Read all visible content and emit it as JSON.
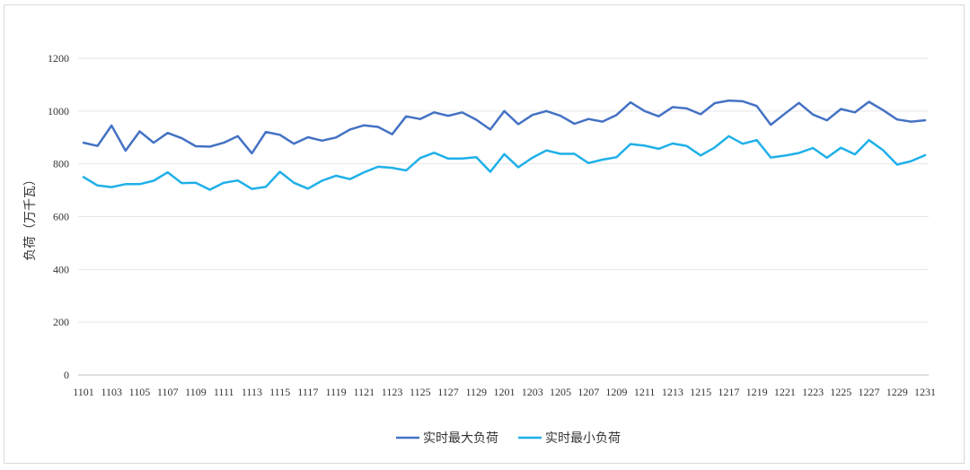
{
  "chart_data": {
    "type": "line",
    "ylabel": "负荷（万千瓦）",
    "ylim": [
      0,
      1200
    ],
    "yticks": [
      0,
      200,
      400,
      600,
      800,
      1000,
      1200
    ],
    "grid": "horizontal",
    "legend_position": "bottom",
    "x": [
      "1101",
      "1102",
      "1103",
      "1104",
      "1105",
      "1106",
      "1107",
      "1108",
      "1109",
      "1110",
      "1111",
      "1112",
      "1113",
      "1114",
      "1115",
      "1116",
      "1117",
      "1118",
      "1119",
      "1120",
      "1121",
      "1122",
      "1123",
      "1124",
      "1125",
      "1126",
      "1127",
      "1128",
      "1129",
      "1130",
      "1201",
      "1202",
      "1203",
      "1204",
      "1205",
      "1206",
      "1207",
      "1208",
      "1209",
      "1210",
      "1211",
      "1212",
      "1213",
      "1214",
      "1215",
      "1216",
      "1217",
      "1218",
      "1219",
      "1220",
      "1221",
      "1222",
      "1223",
      "1224",
      "1225",
      "1226",
      "1227",
      "1228",
      "1229",
      "1230",
      "1231"
    ],
    "xtick_labels": [
      "1101",
      "1103",
      "1105",
      "1107",
      "1109",
      "1111",
      "1113",
      "1115",
      "1117",
      "1119",
      "1121",
      "1123",
      "1125",
      "1127",
      "1129",
      "1201",
      "1203",
      "1205",
      "1207",
      "1209",
      "1211",
      "1213",
      "1215",
      "1217",
      "1219",
      "1221",
      "1223",
      "1225",
      "1227",
      "1229",
      "1231"
    ],
    "series": [
      {
        "name": "实时最大负荷",
        "color": "#4472c4",
        "values": [
          880,
          868,
          945,
          850,
          923,
          880,
          917,
          897,
          867,
          865,
          880,
          905,
          840,
          921,
          910,
          876,
          901,
          888,
          900,
          930,
          946,
          940,
          912,
          980,
          970,
          995,
          982,
          995,
          967,
          930,
          1000,
          950,
          985,
          1000,
          982,
          952,
          970,
          960,
          985,
          1033,
          1000,
          980,
          1015,
          1010,
          988,
          1030,
          1040,
          1037,
          1019,
          948,
          990,
          1031,
          987,
          965,
          1008,
          995,
          1035,
          1004,
          968,
          960,
          965
        ]
      },
      {
        "name": "实时最小负荷",
        "color": "#1fb0e8",
        "values": [
          750,
          718,
          712,
          723,
          723,
          736,
          768,
          727,
          728,
          702,
          728,
          737,
          705,
          713,
          770,
          728,
          706,
          736,
          755,
          742,
          768,
          789,
          785,
          775,
          822,
          842,
          820,
          820,
          825,
          770,
          837,
          787,
          823,
          851,
          838,
          838,
          803,
          816,
          825,
          875,
          869,
          857,
          877,
          868,
          832,
          862,
          905,
          876,
          890,
          824,
          831,
          841,
          860,
          823,
          861,
          836,
          890,
          852,
          797,
          810,
          833
        ]
      }
    ]
  }
}
